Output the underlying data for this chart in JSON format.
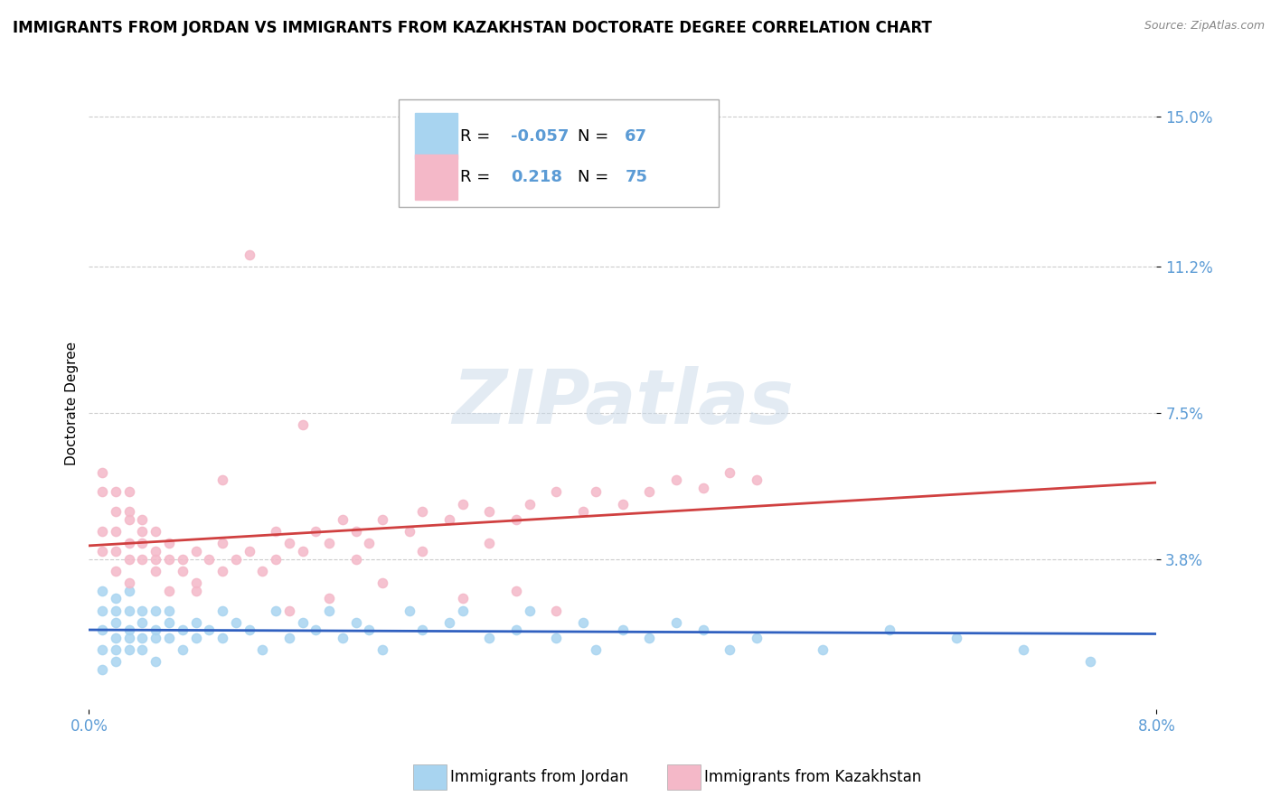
{
  "title": "IMMIGRANTS FROM JORDAN VS IMMIGRANTS FROM KAZAKHSTAN DOCTORATE DEGREE CORRELATION CHART",
  "source": "Source: ZipAtlas.com",
  "xlabel_jordan": "Immigrants from Jordan",
  "xlabel_kazakhstan": "Immigrants from Kazakhstan",
  "ylabel": "Doctorate Degree",
  "xlim": [
    0.0,
    0.08
  ],
  "ylim": [
    0.0,
    0.155
  ],
  "ytick_labels": [
    "3.8%",
    "7.5%",
    "11.2%",
    "15.0%"
  ],
  "ytick_values": [
    0.038,
    0.075,
    0.112,
    0.15
  ],
  "jordan_color": "#A8D4F0",
  "kazakhstan_color": "#F4B8C8",
  "jordan_R": -0.057,
  "jordan_N": 67,
  "kazakhstan_R": 0.218,
  "kazakhstan_N": 75,
  "background_color": "#ffffff",
  "grid_color": "#cccccc",
  "axis_label_color": "#5B9BD5",
  "title_fontsize": 12,
  "label_fontsize": 11,
  "tick_fontsize": 12,
  "jordan_trend_color": "#3060C0",
  "kazakhstan_trend_color": "#D04040",
  "jordan_scatter_x": [
    0.001,
    0.001,
    0.001,
    0.001,
    0.001,
    0.002,
    0.002,
    0.002,
    0.002,
    0.002,
    0.002,
    0.003,
    0.003,
    0.003,
    0.003,
    0.003,
    0.004,
    0.004,
    0.004,
    0.004,
    0.005,
    0.005,
    0.005,
    0.005,
    0.006,
    0.006,
    0.006,
    0.007,
    0.007,
    0.008,
    0.008,
    0.009,
    0.01,
    0.01,
    0.011,
    0.012,
    0.013,
    0.014,
    0.015,
    0.016,
    0.017,
    0.018,
    0.019,
    0.02,
    0.021,
    0.022,
    0.024,
    0.025,
    0.027,
    0.028,
    0.03,
    0.032,
    0.033,
    0.035,
    0.037,
    0.038,
    0.04,
    0.042,
    0.044,
    0.046,
    0.048,
    0.05,
    0.055,
    0.06,
    0.065,
    0.07,
    0.075
  ],
  "jordan_scatter_y": [
    0.02,
    0.025,
    0.01,
    0.015,
    0.03,
    0.018,
    0.022,
    0.015,
    0.028,
    0.012,
    0.025,
    0.02,
    0.018,
    0.025,
    0.015,
    0.03,
    0.022,
    0.018,
    0.025,
    0.015,
    0.02,
    0.025,
    0.018,
    0.012,
    0.022,
    0.018,
    0.025,
    0.02,
    0.015,
    0.022,
    0.018,
    0.02,
    0.025,
    0.018,
    0.022,
    0.02,
    0.015,
    0.025,
    0.018,
    0.022,
    0.02,
    0.025,
    0.018,
    0.022,
    0.02,
    0.015,
    0.025,
    0.02,
    0.022,
    0.025,
    0.018,
    0.02,
    0.025,
    0.018,
    0.022,
    0.015,
    0.02,
    0.018,
    0.022,
    0.02,
    0.015,
    0.018,
    0.015,
    0.02,
    0.018,
    0.015,
    0.012
  ],
  "kazakhstan_scatter_x": [
    0.001,
    0.001,
    0.001,
    0.001,
    0.002,
    0.002,
    0.002,
    0.002,
    0.002,
    0.003,
    0.003,
    0.003,
    0.003,
    0.003,
    0.003,
    0.004,
    0.004,
    0.004,
    0.004,
    0.005,
    0.005,
    0.005,
    0.005,
    0.006,
    0.006,
    0.006,
    0.007,
    0.007,
    0.008,
    0.008,
    0.009,
    0.01,
    0.01,
    0.011,
    0.012,
    0.013,
    0.014,
    0.015,
    0.016,
    0.017,
    0.018,
    0.019,
    0.02,
    0.021,
    0.022,
    0.024,
    0.025,
    0.027,
    0.028,
    0.03,
    0.032,
    0.033,
    0.035,
    0.037,
    0.038,
    0.04,
    0.042,
    0.044,
    0.046,
    0.048,
    0.05,
    0.035,
    0.028,
    0.032,
    0.02,
    0.025,
    0.03,
    0.015,
    0.018,
    0.022,
    0.012,
    0.016,
    0.008,
    0.01,
    0.014
  ],
  "kazakhstan_scatter_y": [
    0.055,
    0.06,
    0.04,
    0.045,
    0.05,
    0.055,
    0.04,
    0.045,
    0.035,
    0.048,
    0.042,
    0.05,
    0.038,
    0.055,
    0.032,
    0.038,
    0.045,
    0.042,
    0.048,
    0.04,
    0.038,
    0.045,
    0.035,
    0.042,
    0.038,
    0.03,
    0.035,
    0.038,
    0.032,
    0.04,
    0.038,
    0.035,
    0.042,
    0.038,
    0.04,
    0.035,
    0.038,
    0.042,
    0.04,
    0.045,
    0.042,
    0.048,
    0.045,
    0.042,
    0.048,
    0.045,
    0.05,
    0.048,
    0.052,
    0.05,
    0.048,
    0.052,
    0.055,
    0.05,
    0.055,
    0.052,
    0.055,
    0.058,
    0.056,
    0.06,
    0.058,
    0.025,
    0.028,
    0.03,
    0.038,
    0.04,
    0.042,
    0.025,
    0.028,
    0.032,
    0.115,
    0.072,
    0.03,
    0.058,
    0.045
  ]
}
